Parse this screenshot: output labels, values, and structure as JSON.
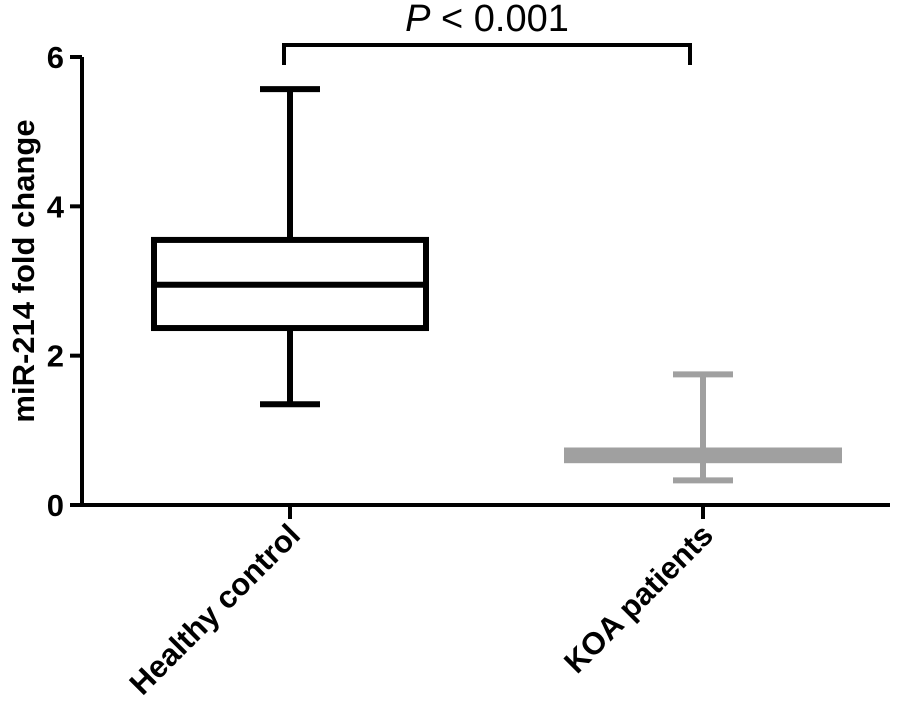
{
  "chart_data": {
    "type": "box",
    "ylabel": "miR-214 fold change",
    "ylim": [
      0,
      6
    ],
    "yticks": [
      0,
      2,
      4,
      6
    ],
    "categories": [
      "Healthy control",
      "KOA patients"
    ],
    "boxes": [
      {
        "category": "Healthy control",
        "min": 1.35,
        "q1": 2.37,
        "median": 2.95,
        "q3": 3.55,
        "max": 5.57,
        "color": "#000000"
      },
      {
        "category": "KOA patients",
        "min": 0.33,
        "q1": 0.6,
        "median": 0.67,
        "q3": 0.73,
        "max": 1.75,
        "color": "#a0a0a0"
      }
    ],
    "annotation": {
      "prefix": "P",
      "text": " < 0.001"
    }
  }
}
